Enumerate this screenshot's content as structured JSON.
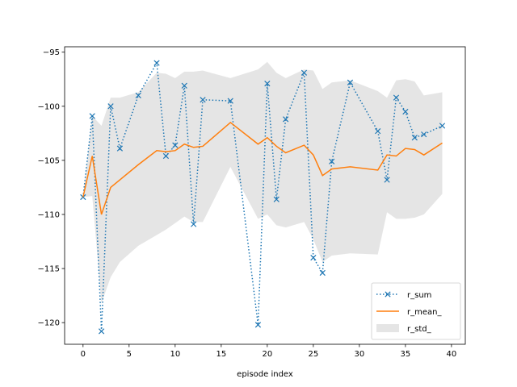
{
  "chart_data": {
    "type": "line",
    "xlabel": "episode index",
    "ylabel": "",
    "xlim": [
      -2,
      41.5
    ],
    "ylim": [
      -122,
      -94.5
    ],
    "xticks": [
      0,
      5,
      10,
      15,
      20,
      25,
      30,
      35,
      40
    ],
    "yticks": [
      -95,
      -100,
      -105,
      -110,
      -115,
      -120
    ],
    "grid": false,
    "legend_position": "bottom-right",
    "series": [
      {
        "name": "r_sum",
        "style": "dotted-x-markers",
        "color": "#1f77b4",
        "x": [
          0,
          1,
          2,
          3,
          4,
          6,
          8,
          9,
          10,
          11,
          12,
          13,
          16,
          19,
          20,
          21,
          22,
          24,
          25,
          26,
          27,
          29,
          32,
          33,
          34,
          35,
          36,
          37,
          39
        ],
        "y": [
          -108.4,
          -100.9,
          -120.8,
          -100.0,
          -103.9,
          -99.0,
          -96.0,
          -104.6,
          -103.6,
          -98.1,
          -110.9,
          -99.4,
          -99.5,
          -120.2,
          -97.9,
          -108.6,
          -101.2,
          -96.9,
          -114.0,
          -115.4,
          -105.1,
          -97.8,
          -102.3,
          -106.8,
          -99.2,
          -100.5,
          -102.9,
          -102.6,
          -101.8
        ]
      },
      {
        "name": "r_mean_",
        "style": "solid",
        "color": "#ff7f0e",
        "x": [
          0,
          1,
          2,
          3,
          4,
          6,
          8,
          9,
          10,
          11,
          12,
          13,
          16,
          19,
          20,
          21,
          22,
          24,
          25,
          26,
          27,
          29,
          32,
          33,
          34,
          35,
          36,
          37,
          39
        ],
        "y": [
          -108.4,
          -104.6,
          -110.0,
          -107.5,
          -106.8,
          -105.4,
          -104.1,
          -104.2,
          -104.1,
          -103.5,
          -103.8,
          -103.7,
          -101.5,
          -103.5,
          -102.9,
          -103.7,
          -104.3,
          -103.6,
          -104.5,
          -106.4,
          -105.8,
          -105.6,
          -105.9,
          -104.5,
          -104.6,
          -103.9,
          -104.0,
          -104.5,
          -103.4
        ]
      }
    ],
    "band": {
      "name": "r_std_",
      "color": "#d3d3d3",
      "x": [
        0,
        1,
        2,
        3,
        4,
        6,
        8,
        9,
        10,
        11,
        12,
        13,
        16,
        19,
        20,
        21,
        22,
        24,
        25,
        26,
        27,
        29,
        32,
        33,
        34,
        35,
        36,
        37,
        39
      ],
      "upper": [
        -108.4,
        -100.9,
        -101.8,
        -99.2,
        -99.2,
        -98.7,
        -96.9,
        -97.0,
        -97.4,
        -96.8,
        -96.8,
        -96.7,
        -97.4,
        -96.6,
        -95.9,
        -96.9,
        -97.4,
        -96.6,
        -96.7,
        -98.4,
        -97.8,
        -97.6,
        -98.6,
        -99.2,
        -97.6,
        -97.5,
        -97.7,
        -99.0,
        -98.7
      ],
      "lower": [
        -108.4,
        -108.3,
        -118.2,
        -115.8,
        -114.4,
        -112.9,
        -111.9,
        -111.4,
        -110.8,
        -110.2,
        -110.7,
        -110.7,
        -105.6,
        -110.4,
        -110.0,
        -111.0,
        -111.2,
        -110.7,
        -112.3,
        -114.4,
        -113.8,
        -113.6,
        -113.7,
        -109.8,
        -110.4,
        -110.4,
        -110.3,
        -110.0,
        -108.1
      ]
    },
    "legend": [
      {
        "label": "r_sum",
        "kind": "line-marker"
      },
      {
        "label": "r_mean_",
        "kind": "line"
      },
      {
        "label": "r_std_",
        "kind": "patch"
      }
    ]
  }
}
